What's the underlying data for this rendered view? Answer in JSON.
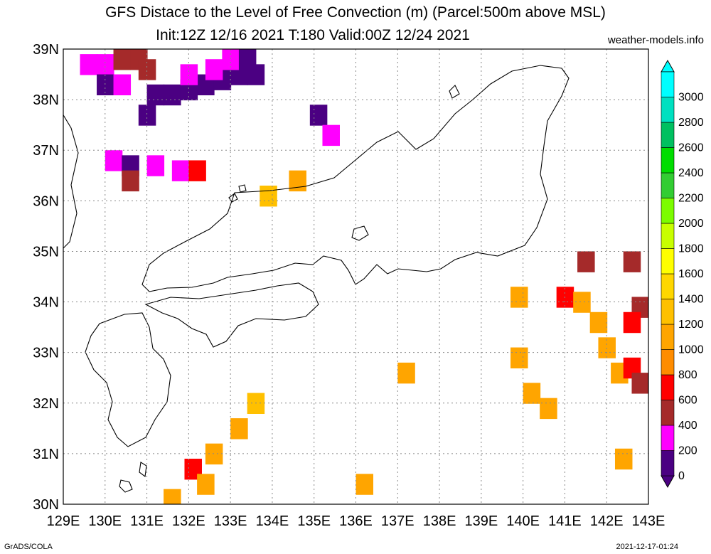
{
  "title_line1": "GFS Distace to the Level of Free Convection (m) (Parcel:500m above MSL)",
  "title_line2": "Init:12Z 12/16 2021 T:180 Valid:00Z 12/24 2021",
  "site": "weather-models.info",
  "footer_left": "GrADS/COLA",
  "footer_right": "2021-12-17-01:24",
  "lon_labels": [
    "129E",
    "130E",
    "131E",
    "132E",
    "133E",
    "134E",
    "135E",
    "136E",
    "137E",
    "138E",
    "139E",
    "140E",
    "141E",
    "142E",
    "143E"
  ],
  "lat_labels": [
    "30N",
    "31N",
    "32N",
    "33N",
    "34N",
    "35N",
    "36N",
    "37N",
    "38N",
    "39N"
  ],
  "legend": {
    "labels": [
      "0",
      "200",
      "400",
      "600",
      "800",
      "1000",
      "1200",
      "1400",
      "1600",
      "1800",
      "2000",
      "2200",
      "2400",
      "2600",
      "2800",
      "3000"
    ],
    "colors": [
      "#4b0082",
      "#ff00ff",
      "#a52a2a",
      "#ff0000",
      "#ff8c00",
      "#ffa500",
      "#ffc000",
      "#ffd700",
      "#ffff00",
      "#c8ff00",
      "#7cfc00",
      "#32cd32",
      "#00dd00",
      "#00c060",
      "#00e0c0",
      "#00ffff"
    ]
  },
  "map_data": {
    "type": "heatmap",
    "lon_range": [
      129,
      143
    ],
    "lat_range": [
      30,
      39
    ],
    "cells": [
      {
        "lon": 129.6,
        "lat": 38.7,
        "v": 200
      },
      {
        "lon": 130.0,
        "lat": 38.7,
        "v": 200
      },
      {
        "lon": 130.4,
        "lat": 38.8,
        "v": 400
      },
      {
        "lon": 130.8,
        "lat": 38.8,
        "v": 400
      },
      {
        "lon": 131.0,
        "lat": 38.6,
        "v": 400
      },
      {
        "lon": 130.0,
        "lat": 38.3,
        "v": 0
      },
      {
        "lon": 130.4,
        "lat": 38.3,
        "v": 200
      },
      {
        "lon": 131.2,
        "lat": 38.1,
        "v": 0
      },
      {
        "lon": 131.6,
        "lat": 38.1,
        "v": 0
      },
      {
        "lon": 132.0,
        "lat": 38.2,
        "v": 0
      },
      {
        "lon": 132.4,
        "lat": 38.3,
        "v": 0
      },
      {
        "lon": 132.8,
        "lat": 38.4,
        "v": 0
      },
      {
        "lon": 133.2,
        "lat": 38.5,
        "v": 0
      },
      {
        "lon": 133.6,
        "lat": 38.5,
        "v": 0
      },
      {
        "lon": 132.0,
        "lat": 38.5,
        "v": 200
      },
      {
        "lon": 132.6,
        "lat": 38.6,
        "v": 200
      },
      {
        "lon": 133.0,
        "lat": 38.8,
        "v": 200
      },
      {
        "lon": 133.4,
        "lat": 38.8,
        "v": 0
      },
      {
        "lon": 131.0,
        "lat": 37.7,
        "v": 0
      },
      {
        "lon": 135.1,
        "lat": 37.7,
        "v": 0
      },
      {
        "lon": 135.4,
        "lat": 37.3,
        "v": 200
      },
      {
        "lon": 130.2,
        "lat": 36.8,
        "v": 200
      },
      {
        "lon": 130.6,
        "lat": 36.7,
        "v": 0
      },
      {
        "lon": 131.2,
        "lat": 36.7,
        "v": 200
      },
      {
        "lon": 131.8,
        "lat": 36.6,
        "v": 200
      },
      {
        "lon": 132.2,
        "lat": 36.6,
        "v": 600
      },
      {
        "lon": 130.6,
        "lat": 36.4,
        "v": 400
      },
      {
        "lon": 133.9,
        "lat": 36.1,
        "v": 1200
      },
      {
        "lon": 134.6,
        "lat": 36.4,
        "v": 1000
      },
      {
        "lon": 133.6,
        "lat": 32.0,
        "v": 1200
      },
      {
        "lon": 133.2,
        "lat": 31.5,
        "v": 1100
      },
      {
        "lon": 132.6,
        "lat": 31.0,
        "v": 1000
      },
      {
        "lon": 132.1,
        "lat": 30.7,
        "v": 600
      },
      {
        "lon": 132.4,
        "lat": 30.4,
        "v": 1000
      },
      {
        "lon": 131.6,
        "lat": 30.1,
        "v": 1000
      },
      {
        "lon": 136.2,
        "lat": 30.4,
        "v": 1000
      },
      {
        "lon": 137.2,
        "lat": 32.6,
        "v": 1100
      },
      {
        "lon": 139.9,
        "lat": 34.1,
        "v": 1100
      },
      {
        "lon": 139.9,
        "lat": 32.9,
        "v": 1000
      },
      {
        "lon": 140.2,
        "lat": 32.2,
        "v": 1000
      },
      {
        "lon": 140.6,
        "lat": 31.9,
        "v": 1000
      },
      {
        "lon": 141.0,
        "lat": 34.1,
        "v": 600
      },
      {
        "lon": 141.4,
        "lat": 34.0,
        "v": 1000
      },
      {
        "lon": 141.8,
        "lat": 33.6,
        "v": 1000
      },
      {
        "lon": 142.0,
        "lat": 33.1,
        "v": 1000
      },
      {
        "lon": 142.3,
        "lat": 32.6,
        "v": 1100
      },
      {
        "lon": 142.6,
        "lat": 32.7,
        "v": 600
      },
      {
        "lon": 142.8,
        "lat": 32.4,
        "v": 400
      },
      {
        "lon": 142.8,
        "lat": 33.9,
        "v": 400
      },
      {
        "lon": 142.6,
        "lat": 33.6,
        "v": 600
      },
      {
        "lon": 141.5,
        "lat": 34.8,
        "v": 400
      },
      {
        "lon": 142.6,
        "lat": 34.8,
        "v": 400
      },
      {
        "lon": 142.4,
        "lat": 30.9,
        "v": 1100
      }
    ]
  }
}
